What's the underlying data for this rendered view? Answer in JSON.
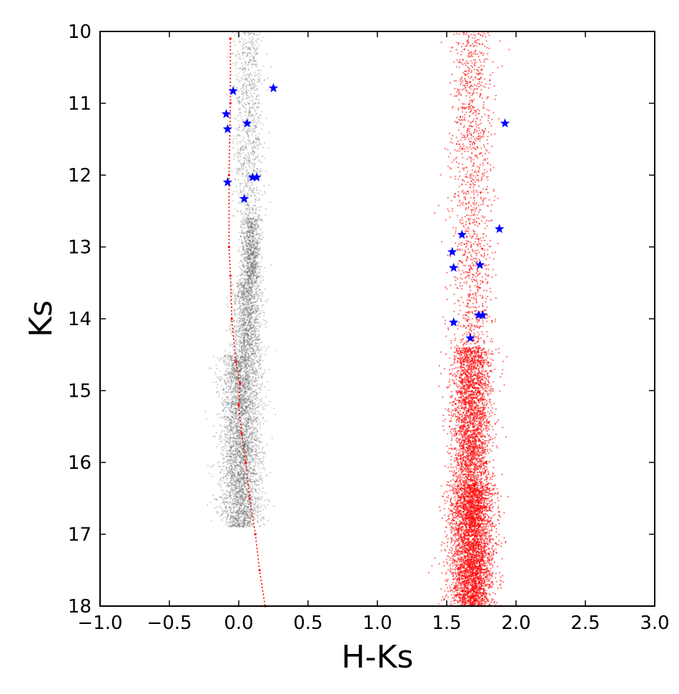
{
  "chart_data": {
    "type": "scatter",
    "title": "",
    "xlabel": "H-Ks",
    "ylabel": "Ks",
    "xlim": [
      -1.0,
      3.0
    ],
    "ylim": [
      18,
      10
    ],
    "y_inverted": true,
    "grid": false,
    "x_ticks": [
      "−1.0",
      "−0.5",
      "0.0",
      "0.5",
      "1.0",
      "1.5",
      "2.0",
      "2.5",
      "3.0"
    ],
    "x_tick_values": [
      -1.0,
      -0.5,
      0.0,
      0.5,
      1.0,
      1.5,
      2.0,
      2.5,
      3.0
    ],
    "y_ticks": [
      "10",
      "11",
      "12",
      "13",
      "14",
      "15",
      "16",
      "17",
      "18"
    ],
    "y_tick_values": [
      10,
      11,
      12,
      13,
      14,
      15,
      16,
      17,
      18
    ],
    "series": [
      {
        "marker": "dot",
        "color": "#555555",
        "distribution": [
          {
            "x_center": 0.07,
            "x_spread": 0.09,
            "y_min": 10.0,
            "y_max": 12.6,
            "count": 900
          },
          {
            "x_center": 0.09,
            "x_spread": 0.06,
            "y_min": 12.6,
            "y_max": 13.5,
            "count": 900
          },
          {
            "x_center": 0.06,
            "x_spread": 0.09,
            "y_min": 13.5,
            "y_max": 14.5,
            "count": 1100
          },
          {
            "x_center": 0.02,
            "x_spread": 0.12,
            "y_min": 14.5,
            "y_max": 16.9,
            "count": 3600
          }
        ]
      },
      {
        "marker": "dot",
        "color": "#ff0000",
        "distribution": [
          {
            "x_center": 1.68,
            "x_spread": 0.13,
            "y_min": 10.0,
            "y_max": 14.4,
            "count": 1300
          },
          {
            "x_center": 1.68,
            "x_spread": 0.12,
            "y_min": 14.4,
            "y_max": 16.3,
            "count": 2600
          },
          {
            "x_center": 1.68,
            "x_spread": 0.13,
            "y_min": 16.3,
            "y_max": 18.0,
            "count": 3800
          }
        ]
      },
      {
        "marker": "line",
        "color": "#ff0000",
        "points": [
          {
            "x": -0.06,
            "y": 10.1
          },
          {
            "x": -0.06,
            "y": 11.0
          },
          {
            "x": -0.07,
            "y": 12.0
          },
          {
            "x": -0.07,
            "y": 13.0
          },
          {
            "x": -0.06,
            "y": 13.4
          },
          {
            "x": -0.05,
            "y": 14.0
          },
          {
            "x": -0.02,
            "y": 14.6
          },
          {
            "x": 0.01,
            "y": 14.9
          },
          {
            "x": 0.0,
            "y": 15.2
          },
          {
            "x": 0.02,
            "y": 15.6
          },
          {
            "x": 0.05,
            "y": 16.0
          },
          {
            "x": 0.08,
            "y": 16.5
          },
          {
            "x": 0.12,
            "y": 17.0
          },
          {
            "x": 0.15,
            "y": 17.5
          },
          {
            "x": 0.19,
            "y": 18.0
          }
        ]
      },
      {
        "marker": "star",
        "color": "#0000ff",
        "points": [
          {
            "x": -0.04,
            "y": 10.83
          },
          {
            "x": 0.25,
            "y": 10.79
          },
          {
            "x": -0.09,
            "y": 11.15
          },
          {
            "x": 0.06,
            "y": 11.28
          },
          {
            "x": -0.08,
            "y": 11.36
          },
          {
            "x": 0.1,
            "y": 12.03
          },
          {
            "x": 0.13,
            "y": 12.03
          },
          {
            "x": -0.08,
            "y": 12.1
          },
          {
            "x": 0.04,
            "y": 12.33
          },
          {
            "x": 1.92,
            "y": 11.28
          },
          {
            "x": 1.88,
            "y": 12.75
          },
          {
            "x": 1.61,
            "y": 12.83
          },
          {
            "x": 1.54,
            "y": 13.07
          },
          {
            "x": 1.74,
            "y": 13.25
          },
          {
            "x": 1.55,
            "y": 13.29
          },
          {
            "x": 1.73,
            "y": 13.95
          },
          {
            "x": 1.76,
            "y": 13.95
          },
          {
            "x": 1.55,
            "y": 14.05
          },
          {
            "x": 1.67,
            "y": 14.27
          }
        ]
      }
    ]
  }
}
